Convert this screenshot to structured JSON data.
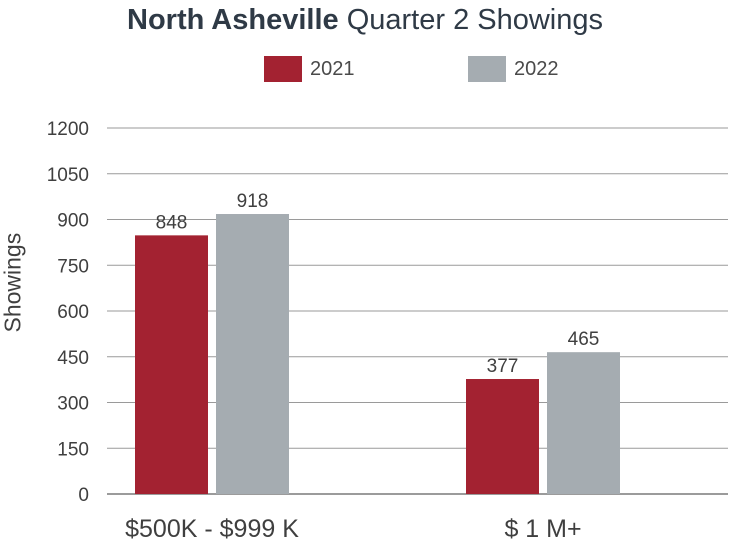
{
  "title_bold": "North Asheville",
  "title_rest": " Quarter 2 Showings",
  "chart_data": {
    "type": "bar",
    "title": "North Asheville Quarter 2 Showings",
    "ylabel": "Showings",
    "xlabel": "",
    "categories": [
      "$500K - $999 K",
      "$ 1 M+"
    ],
    "series": [
      {
        "name": "2021",
        "color": "#a32231",
        "values": [
          848,
          377
        ]
      },
      {
        "name": "2022",
        "color": "#a5acb1",
        "values": [
          918,
          465
        ]
      }
    ],
    "ylim": [
      0,
      1200
    ],
    "yticks": [
      0,
      150,
      300,
      450,
      600,
      750,
      900,
      1050,
      1200
    ],
    "grid": true,
    "legend": "top-center"
  }
}
